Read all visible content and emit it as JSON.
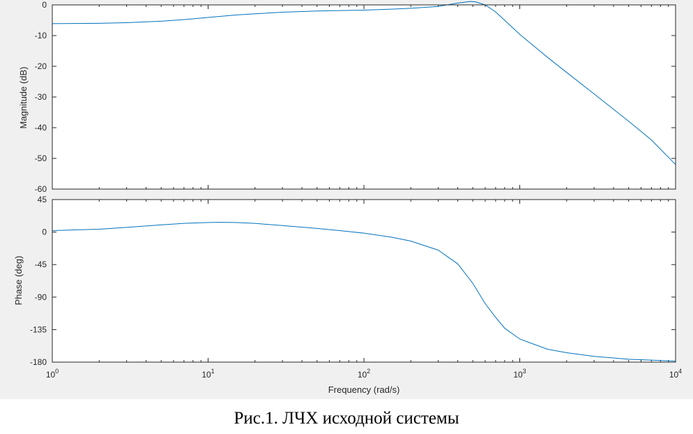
{
  "caption": "Рис.1. ЛЧХ исходной системы",
  "chart_data": [
    {
      "type": "line",
      "xscale": "log",
      "xlim": [
        1,
        10000
      ],
      "ylim": [
        -60,
        0
      ],
      "ylabel": "Magnitude (dB)",
      "yticks": [
        0,
        -10,
        -20,
        -30,
        -40,
        -50,
        -60
      ],
      "series": [
        {
          "color": "#0072bd",
          "x": [
            1,
            2,
            3,
            5,
            7,
            10,
            15,
            20,
            30,
            50,
            100,
            150,
            200,
            300,
            400,
            480,
            520,
            600,
            700,
            800,
            1000,
            1500,
            2000,
            3000,
            5000,
            7000,
            10000
          ],
          "y": [
            -6.1,
            -6.0,
            -5.8,
            -5.3,
            -4.8,
            -4.1,
            -3.3,
            -2.9,
            -2.4,
            -2.0,
            -1.7,
            -1.4,
            -1.1,
            -0.5,
            0.6,
            1.1,
            1.0,
            0.0,
            -2.3,
            -5.0,
            -9.6,
            -17.0,
            -22.0,
            -29.0,
            -37.9,
            -44.0,
            -52.0
          ]
        }
      ]
    },
    {
      "type": "line",
      "xscale": "log",
      "xlim": [
        1,
        10000
      ],
      "ylim": [
        -180,
        45
      ],
      "ylabel": "Phase (deg)",
      "xlabel": "Frequency  (rad/s)",
      "yticks": [
        45,
        0,
        -45,
        -90,
        -135,
        -180
      ],
      "xtick_labels": [
        {
          "value": 1,
          "base": "10",
          "exp": "0"
        },
        {
          "value": 10,
          "base": "10",
          "exp": "1"
        },
        {
          "value": 100,
          "base": "10",
          "exp": "2"
        },
        {
          "value": 1000,
          "base": "10",
          "exp": "3"
        },
        {
          "value": 10000,
          "base": "10",
          "exp": "4"
        }
      ],
      "series": [
        {
          "color": "#0072bd",
          "x": [
            1,
            2,
            3,
            5,
            7,
            10,
            12,
            15,
            20,
            30,
            50,
            70,
            100,
            150,
            200,
            300,
            400,
            500,
            600,
            700,
            800,
            1000,
            1500,
            2000,
            3000,
            5000,
            10000
          ],
          "y": [
            2.0,
            4.0,
            6.5,
            10.0,
            12.0,
            13.2,
            13.5,
            13.2,
            12.0,
            9.0,
            5.0,
            2.0,
            -1.5,
            -7.0,
            -12.5,
            -25.0,
            -44.0,
            -71.0,
            -99.0,
            -118.0,
            -133.0,
            -148.0,
            -162.0,
            -167.0,
            -172.0,
            -176.0,
            -178.5
          ]
        }
      ]
    }
  ]
}
